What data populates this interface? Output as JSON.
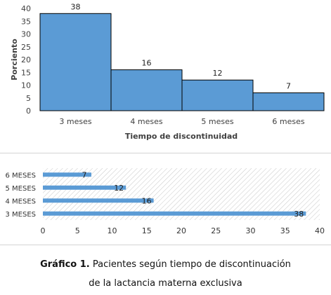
{
  "chart_data": [
    {
      "type": "bar",
      "orientation": "vertical",
      "categories": [
        "3 meses",
        "4 meses",
        "5 meses",
        "6 meses"
      ],
      "values": [
        38,
        16,
        12,
        7
      ],
      "data_labels": [
        "38",
        "16",
        "12",
        "7"
      ],
      "xlabel": "Tiempo de discontinuidad",
      "ylabel": "Porciento",
      "ylim": [
        0,
        40
      ],
      "yticks": [
        "0",
        "5",
        "10",
        "15",
        "20",
        "25",
        "30",
        "35",
        "40"
      ],
      "bar_color": "#5b9bd5",
      "bar_edge_color": "#000000",
      "grid": false
    },
    {
      "type": "bar",
      "orientation": "horizontal",
      "categories": [
        "6 MESES",
        "5 MESES",
        "4 MESES",
        "3  MESES"
      ],
      "values": [
        7,
        12,
        16,
        38
      ],
      "data_labels": [
        "7",
        "12",
        "16",
        "38"
      ],
      "xlim": [
        0,
        40
      ],
      "xticks": [
        "0",
        "5",
        "10",
        "15",
        "20",
        "25",
        "30",
        "35",
        "40"
      ],
      "bar_color": "#5b9bd5",
      "plot_background": "hatched",
      "grid": false
    }
  ],
  "caption": {
    "label": "Gráfico 1.",
    "line1": "Pacientes según tiempo de discontinuación",
    "line2": "de la lactancia materna exclusiva"
  }
}
